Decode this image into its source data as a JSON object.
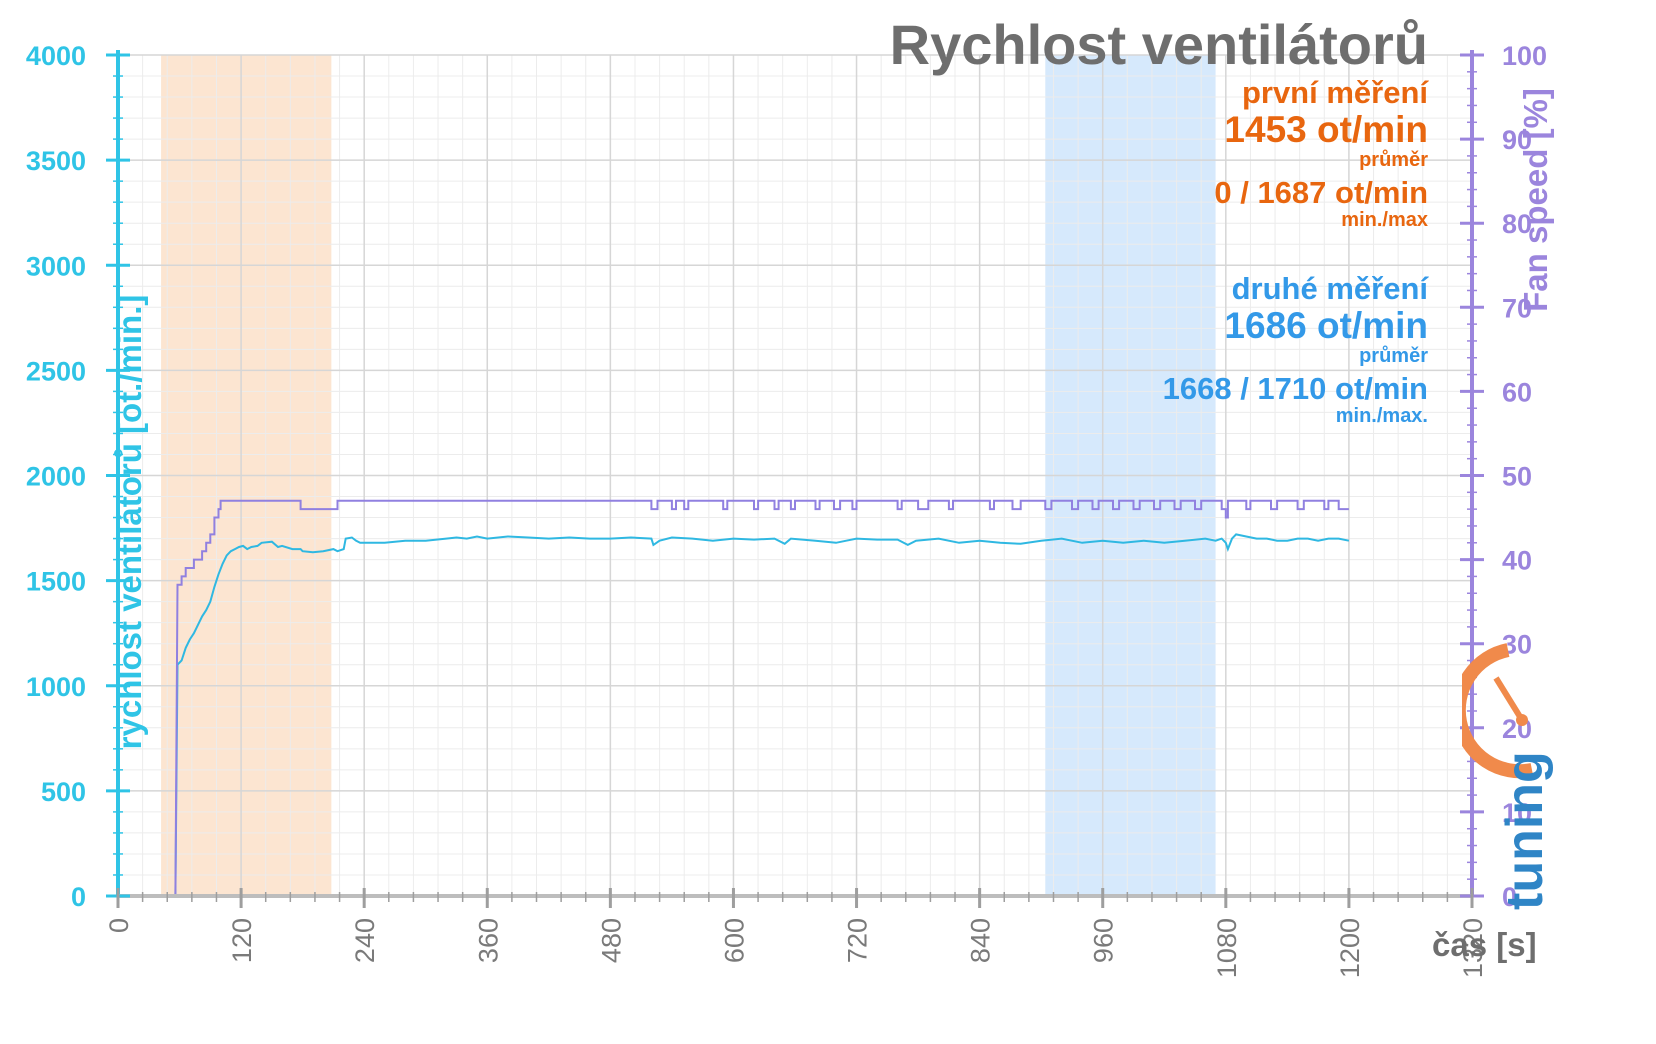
{
  "chart_data": {
    "type": "line",
    "title": "Rychlost ventilátorů",
    "xlabel": "čas [s]",
    "ylabel_left": "rychlost ventilátorů [ot./min.]",
    "ylabel_right": "Fan speed [%]",
    "xlim": [
      0,
      1320
    ],
    "ylim_left": [
      0,
      4000
    ],
    "ylim_right": [
      0,
      100
    ],
    "x_ticks": [
      0,
      120,
      240,
      360,
      480,
      600,
      720,
      840,
      960,
      1080,
      1200,
      1320
    ],
    "y_ticks_left": [
      0,
      500,
      1000,
      1500,
      2000,
      2500,
      3000,
      3500,
      4000
    ],
    "y_ticks_right": [
      0,
      10,
      20,
      30,
      40,
      50,
      60,
      70,
      80,
      90,
      100
    ],
    "grid": true,
    "highlight_regions": [
      {
        "name": "first",
        "x": [
          42,
          208
        ],
        "color": "#fbe1c9"
      },
      {
        "name": "second",
        "x": [
          904,
          1070
        ],
        "color": "#cfe5fb"
      }
    ],
    "series": [
      {
        "axis": "left",
        "color": "#2fb8e2",
        "points": [
          [
            0,
            0
          ],
          [
            56,
            0
          ],
          [
            58,
            1100
          ],
          [
            62,
            1120
          ],
          [
            66,
            1180
          ],
          [
            70,
            1220
          ],
          [
            74,
            1250
          ],
          [
            78,
            1290
          ],
          [
            82,
            1330
          ],
          [
            86,
            1360
          ],
          [
            90,
            1400
          ],
          [
            94,
            1470
          ],
          [
            98,
            1530
          ],
          [
            102,
            1580
          ],
          [
            106,
            1620
          ],
          [
            110,
            1640
          ],
          [
            114,
            1650
          ],
          [
            118,
            1660
          ],
          [
            122,
            1665
          ],
          [
            126,
            1650
          ],
          [
            130,
            1660
          ],
          [
            136,
            1665
          ],
          [
            140,
            1680
          ],
          [
            150,
            1685
          ],
          [
            156,
            1660
          ],
          [
            160,
            1665
          ],
          [
            170,
            1650
          ],
          [
            178,
            1650
          ],
          [
            180,
            1640
          ],
          [
            190,
            1635
          ],
          [
            200,
            1640
          ],
          [
            210,
            1650
          ],
          [
            214,
            1640
          ],
          [
            220,
            1650
          ],
          [
            222,
            1700
          ],
          [
            228,
            1705
          ],
          [
            232,
            1690
          ],
          [
            236,
            1680
          ],
          [
            260,
            1680
          ],
          [
            280,
            1690
          ],
          [
            300,
            1690
          ],
          [
            320,
            1700
          ],
          [
            330,
            1705
          ],
          [
            340,
            1700
          ],
          [
            350,
            1710
          ],
          [
            360,
            1700
          ],
          [
            380,
            1710
          ],
          [
            400,
            1705
          ],
          [
            420,
            1700
          ],
          [
            440,
            1705
          ],
          [
            460,
            1700
          ],
          [
            480,
            1700
          ],
          [
            500,
            1705
          ],
          [
            520,
            1700
          ],
          [
            522,
            1670
          ],
          [
            528,
            1690
          ],
          [
            540,
            1705
          ],
          [
            560,
            1700
          ],
          [
            580,
            1690
          ],
          [
            600,
            1700
          ],
          [
            620,
            1695
          ],
          [
            640,
            1700
          ],
          [
            650,
            1675
          ],
          [
            656,
            1700
          ],
          [
            680,
            1690
          ],
          [
            700,
            1680
          ],
          [
            710,
            1690
          ],
          [
            720,
            1700
          ],
          [
            740,
            1695
          ],
          [
            760,
            1695
          ],
          [
            770,
            1670
          ],
          [
            778,
            1690
          ],
          [
            800,
            1700
          ],
          [
            820,
            1680
          ],
          [
            840,
            1690
          ],
          [
            860,
            1680
          ],
          [
            880,
            1675
          ],
          [
            900,
            1690
          ],
          [
            920,
            1700
          ],
          [
            940,
            1680
          ],
          [
            960,
            1690
          ],
          [
            980,
            1680
          ],
          [
            1000,
            1690
          ],
          [
            1020,
            1680
          ],
          [
            1040,
            1690
          ],
          [
            1060,
            1700
          ],
          [
            1070,
            1690
          ],
          [
            1076,
            1700
          ],
          [
            1080,
            1680
          ],
          [
            1082,
            1650
          ],
          [
            1086,
            1700
          ],
          [
            1090,
            1720
          ],
          [
            1100,
            1710
          ],
          [
            1110,
            1700
          ],
          [
            1120,
            1700
          ],
          [
            1130,
            1690
          ],
          [
            1140,
            1690
          ],
          [
            1150,
            1700
          ],
          [
            1160,
            1700
          ],
          [
            1170,
            1690
          ],
          [
            1180,
            1700
          ],
          [
            1190,
            1700
          ],
          [
            1200,
            1690
          ]
        ]
      },
      {
        "axis": "left",
        "color": "#9080e0",
        "points": [
          [
            0,
            0
          ],
          [
            56,
            0
          ],
          [
            58,
            1480
          ],
          [
            62,
            1480
          ],
          [
            62,
            1520
          ],
          [
            66,
            1520
          ],
          [
            66,
            1560
          ],
          [
            74,
            1560
          ],
          [
            74,
            1600
          ],
          [
            82,
            1600
          ],
          [
            82,
            1640
          ],
          [
            86,
            1640
          ],
          [
            86,
            1680
          ],
          [
            90,
            1680
          ],
          [
            90,
            1720
          ],
          [
            94,
            1720
          ],
          [
            94,
            1800
          ],
          [
            98,
            1800
          ],
          [
            98,
            1840
          ],
          [
            100,
            1840
          ],
          [
            100,
            1880
          ],
          [
            178,
            1880
          ],
          [
            178,
            1840
          ],
          [
            214,
            1840
          ],
          [
            214,
            1880
          ],
          [
            520,
            1880
          ],
          [
            520,
            1840
          ],
          [
            526,
            1840
          ],
          [
            526,
            1880
          ],
          [
            540,
            1880
          ],
          [
            540,
            1840
          ],
          [
            544,
            1840
          ],
          [
            544,
            1880
          ],
          [
            552,
            1880
          ],
          [
            552,
            1840
          ],
          [
            556,
            1840
          ],
          [
            556,
            1880
          ],
          [
            590,
            1880
          ],
          [
            590,
            1840
          ],
          [
            594,
            1840
          ],
          [
            594,
            1880
          ],
          [
            620,
            1880
          ],
          [
            620,
            1840
          ],
          [
            624,
            1840
          ],
          [
            624,
            1880
          ],
          [
            640,
            1880
          ],
          [
            640,
            1840
          ],
          [
            644,
            1840
          ],
          [
            644,
            1880
          ],
          [
            656,
            1880
          ],
          [
            656,
            1840
          ],
          [
            660,
            1840
          ],
          [
            660,
            1880
          ],
          [
            680,
            1880
          ],
          [
            680,
            1840
          ],
          [
            684,
            1840
          ],
          [
            684,
            1880
          ],
          [
            698,
            1880
          ],
          [
            698,
            1840
          ],
          [
            704,
            1840
          ],
          [
            704,
            1880
          ],
          [
            716,
            1880
          ],
          [
            716,
            1840
          ],
          [
            720,
            1840
          ],
          [
            720,
            1880
          ],
          [
            760,
            1880
          ],
          [
            760,
            1840
          ],
          [
            764,
            1840
          ],
          [
            764,
            1880
          ],
          [
            780,
            1880
          ],
          [
            780,
            1840
          ],
          [
            790,
            1840
          ],
          [
            790,
            1880
          ],
          [
            810,
            1880
          ],
          [
            810,
            1840
          ],
          [
            814,
            1840
          ],
          [
            814,
            1880
          ],
          [
            850,
            1880
          ],
          [
            850,
            1840
          ],
          [
            854,
            1840
          ],
          [
            854,
            1880
          ],
          [
            872,
            1880
          ],
          [
            872,
            1840
          ],
          [
            880,
            1840
          ],
          [
            880,
            1880
          ],
          [
            904,
            1880
          ],
          [
            904,
            1840
          ],
          [
            910,
            1840
          ],
          [
            910,
            1880
          ],
          [
            930,
            1880
          ],
          [
            930,
            1840
          ],
          [
            936,
            1840
          ],
          [
            936,
            1880
          ],
          [
            950,
            1880
          ],
          [
            950,
            1840
          ],
          [
            956,
            1840
          ],
          [
            956,
            1880
          ],
          [
            970,
            1880
          ],
          [
            970,
            1840
          ],
          [
            976,
            1840
          ],
          [
            976,
            1880
          ],
          [
            990,
            1880
          ],
          [
            990,
            1840
          ],
          [
            996,
            1840
          ],
          [
            996,
            1880
          ],
          [
            1010,
            1880
          ],
          [
            1010,
            1840
          ],
          [
            1016,
            1840
          ],
          [
            1016,
            1880
          ],
          [
            1030,
            1880
          ],
          [
            1030,
            1840
          ],
          [
            1036,
            1840
          ],
          [
            1036,
            1880
          ],
          [
            1050,
            1880
          ],
          [
            1050,
            1840
          ],
          [
            1056,
            1840
          ],
          [
            1056,
            1880
          ],
          [
            1076,
            1880
          ],
          [
            1076,
            1840
          ],
          [
            1080,
            1840
          ],
          [
            1080,
            1800
          ],
          [
            1082,
            1800
          ],
          [
            1082,
            1880
          ],
          [
            1100,
            1880
          ],
          [
            1100,
            1840
          ],
          [
            1104,
            1840
          ],
          [
            1104,
            1880
          ],
          [
            1124,
            1880
          ],
          [
            1124,
            1840
          ],
          [
            1130,
            1840
          ],
          [
            1130,
            1880
          ],
          [
            1150,
            1880
          ],
          [
            1150,
            1840
          ],
          [
            1156,
            1840
          ],
          [
            1156,
            1880
          ],
          [
            1176,
            1880
          ],
          [
            1176,
            1840
          ],
          [
            1180,
            1840
          ],
          [
            1180,
            1880
          ],
          [
            1190,
            1880
          ],
          [
            1190,
            1840
          ],
          [
            1200,
            1840
          ]
        ]
      }
    ]
  },
  "summary": {
    "first": {
      "label": "první měření",
      "avg": "1453 ot/min",
      "avg_caption": "průměr",
      "minmax": "0 / 1687 ot/min",
      "minmax_caption": "min./max"
    },
    "second": {
      "label": "druhé měření",
      "avg": "1686 ot/min",
      "avg_caption": "průměr",
      "minmax": "1668 / 1710 ot/min",
      "minmax_caption": "min./max."
    }
  },
  "colors": {
    "left_axis": "#2fc4e6",
    "right_axis": "#9b85dd",
    "first": "#e8660f",
    "second": "#3399e8",
    "logo_orange": "#f08a4b",
    "logo_blue": "#2f85c6"
  },
  "logo": {
    "text": "pctuning"
  }
}
